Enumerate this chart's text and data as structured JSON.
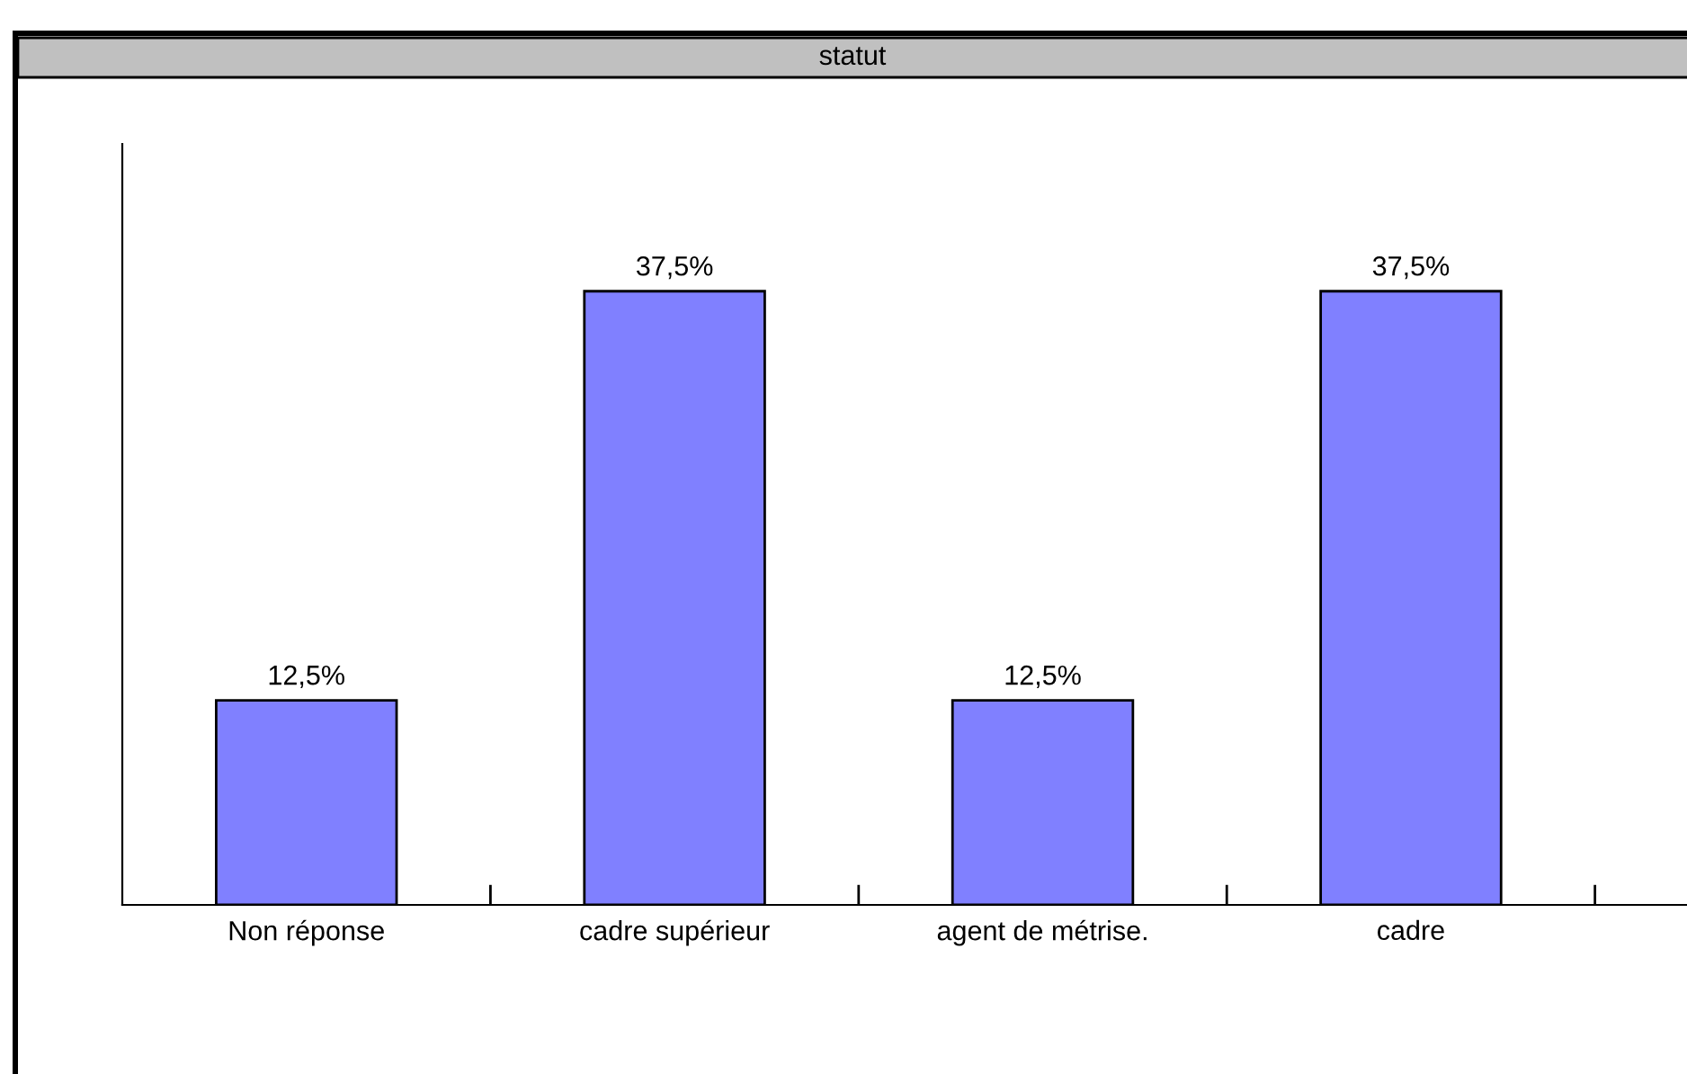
{
  "chart_data": {
    "type": "bar",
    "title": "statut",
    "categories": [
      "Non réponse",
      "cadre supérieur",
      "agent de métrise.",
      "cadre"
    ],
    "values": [
      12.5,
      37.5,
      12.5,
      37.5
    ],
    "value_labels": [
      "12,5%",
      "37,5%",
      "12,5%",
      "37,5%"
    ],
    "color": "#8080ff",
    "grid": false
  }
}
